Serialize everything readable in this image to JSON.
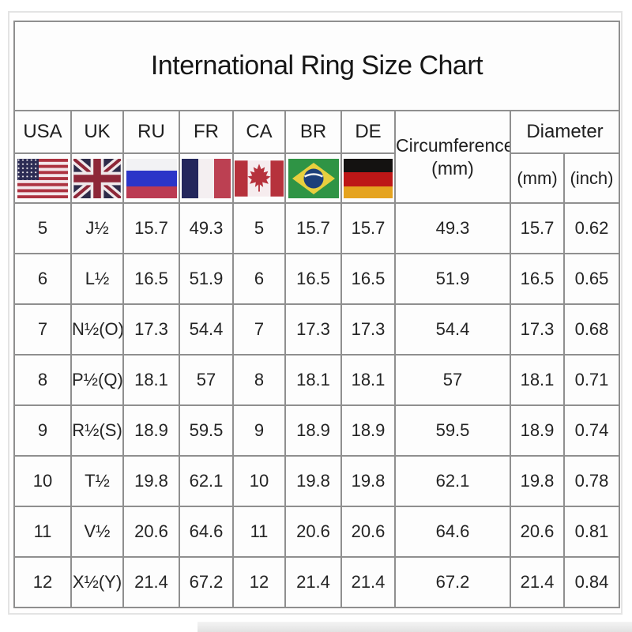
{
  "title": "International Ring Size Chart",
  "header": {
    "countries": [
      {
        "code": "USA"
      },
      {
        "code": "UK"
      },
      {
        "code": "RU"
      },
      {
        "code": "FR"
      },
      {
        "code": "CA"
      },
      {
        "code": "BR"
      },
      {
        "code": "DE"
      }
    ],
    "circumference_line1": "Circumference",
    "circumference_line2": "(mm)",
    "diameter": "Diameter",
    "diameter_mm": "(mm)",
    "diameter_inch": "(inch)"
  },
  "colors": {
    "grid_line": "#8f8f8f",
    "text": "#1f1f1f"
  },
  "chart_data": {
    "type": "table",
    "title": "International Ring Size Chart",
    "columns": [
      "USA",
      "UK",
      "RU",
      "FR",
      "CA",
      "BR",
      "DE",
      "Circumference (mm)",
      "Diameter (mm)",
      "Diameter (inch)"
    ],
    "rows": [
      [
        "5",
        "J½",
        "15.7",
        "49.3",
        "5",
        "15.7",
        "15.7",
        "49.3",
        "15.7",
        "0.62"
      ],
      [
        "6",
        "L½",
        "16.5",
        "51.9",
        "6",
        "16.5",
        "16.5",
        "51.9",
        "16.5",
        "0.65"
      ],
      [
        "7",
        "N½(O)",
        "17.3",
        "54.4",
        "7",
        "17.3",
        "17.3",
        "54.4",
        "17.3",
        "0.68"
      ],
      [
        "8",
        "P½(Q)",
        "18.1",
        "57",
        "8",
        "18.1",
        "18.1",
        "57",
        "18.1",
        "0.71"
      ],
      [
        "9",
        "R½(S)",
        "18.9",
        "59.5",
        "9",
        "18.9",
        "18.9",
        "59.5",
        "18.9",
        "0.74"
      ],
      [
        "10",
        "T½",
        "19.8",
        "62.1",
        "10",
        "19.8",
        "19.8",
        "62.1",
        "19.8",
        "0.78"
      ],
      [
        "11",
        "V½",
        "20.6",
        "64.6",
        "11",
        "20.6",
        "20.6",
        "64.6",
        "20.6",
        "0.81"
      ],
      [
        "12",
        "X½(Y)",
        "21.4",
        "67.2",
        "12",
        "21.4",
        "21.4",
        "67.2",
        "21.4",
        "0.84"
      ]
    ]
  }
}
